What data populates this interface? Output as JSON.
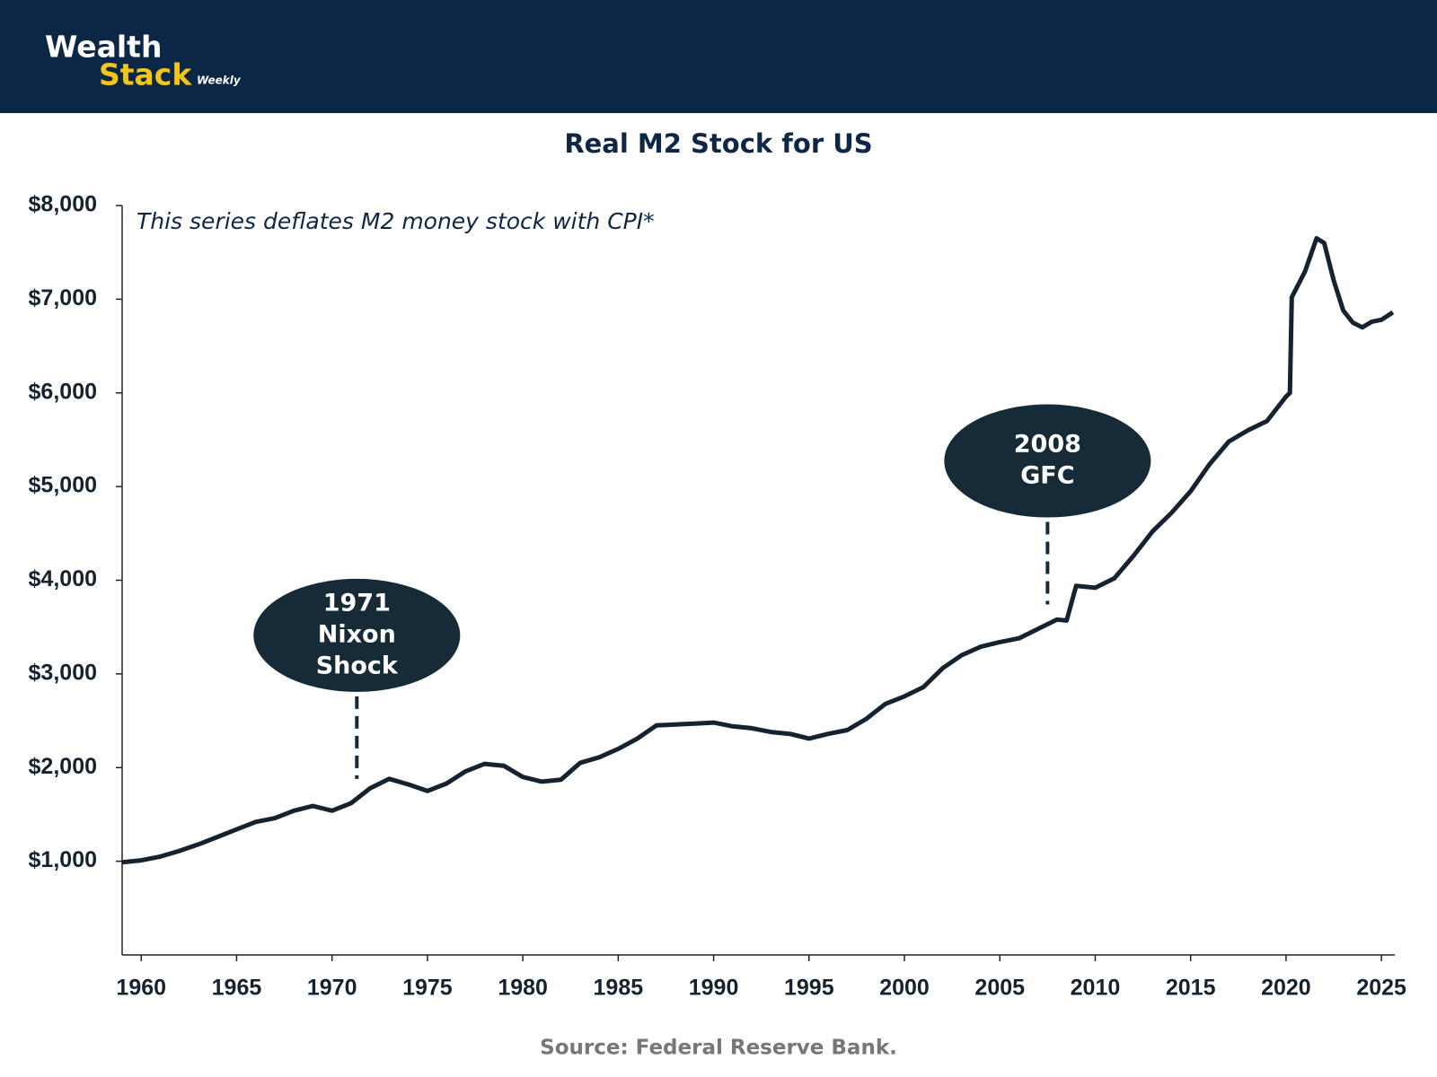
{
  "header": {
    "logo": [
      "Wealth",
      "Stack",
      "Weekly"
    ]
  },
  "chart_data": {
    "type": "line",
    "title": "Real M2 Stock for US",
    "subtitle": "This series deflates M2 money stock with CPI*",
    "source": "Source: Federal Reserve Bank.",
    "color": "#14232f",
    "x": [
      1959,
      1960,
      1961,
      1962,
      1963,
      1964,
      1965,
      1966,
      1967,
      1968,
      1969,
      1970,
      1971,
      1972,
      1973,
      1974,
      1975,
      1976,
      1977,
      1978,
      1979,
      1980,
      1981,
      1982,
      1983,
      1984,
      1985,
      1986,
      1987,
      1988,
      1989,
      1990,
      1991,
      1992,
      1993,
      1994,
      1995,
      1996,
      1997,
      1998,
      1999,
      2000,
      2001,
      2002,
      2003,
      2004,
      2005,
      2006,
      2007,
      2008,
      2008.5,
      2009,
      2010,
      2011,
      2012,
      2013,
      2014,
      2015,
      2016,
      2017,
      2018,
      2019,
      2020,
      2020.2,
      2020.3,
      2021,
      2021.6,
      2022,
      2022.5,
      2023,
      2023.5,
      2024,
      2024.5,
      2025,
      2025.6
    ],
    "values": [
      990,
      1010,
      1050,
      1110,
      1180,
      1260,
      1340,
      1420,
      1460,
      1540,
      1590,
      1540,
      1620,
      1780,
      1880,
      1820,
      1750,
      1830,
      1960,
      2040,
      2020,
      1900,
      1850,
      1870,
      2050,
      2110,
      2200,
      2310,
      2450,
      2460,
      2470,
      2480,
      2440,
      2420,
      2380,
      2360,
      2310,
      2360,
      2400,
      2520,
      2680,
      2760,
      2860,
      3060,
      3200,
      3290,
      3340,
      3380,
      3480,
      3580,
      3570,
      3940,
      3920,
      4020,
      4260,
      4520,
      4720,
      4950,
      5240,
      5480,
      5600,
      5700,
      5960,
      6000,
      7020,
      7300,
      7650,
      7600,
      7200,
      6880,
      6750,
      6700,
      6760,
      6780,
      6860
    ],
    "xlim": [
      1959,
      2025.7
    ],
    "xticks": [
      1960,
      1965,
      1970,
      1975,
      1980,
      1985,
      1990,
      1995,
      2000,
      2005,
      2010,
      2015,
      2020,
      2025
    ],
    "ylim": [
      0,
      8000
    ],
    "yticks": [
      {
        "value": 1000,
        "label": "$1,000"
      },
      {
        "value": 2000,
        "label": "$2,000"
      },
      {
        "value": 3000,
        "label": "$3,000"
      },
      {
        "value": 4000,
        "label": "$4,000"
      },
      {
        "value": 5000,
        "label": "$5,000"
      },
      {
        "value": 6000,
        "label": "$6,000"
      },
      {
        "value": 7000,
        "label": "$7,000"
      },
      {
        "value": 8000,
        "label": "$8,000"
      }
    ],
    "annotations": [
      {
        "x": 1971.3,
        "lines": [
          "1971",
          "Nixon",
          "Shock"
        ]
      },
      {
        "x": 2007.5,
        "lines": [
          "2008",
          "GFC"
        ]
      }
    ]
  }
}
